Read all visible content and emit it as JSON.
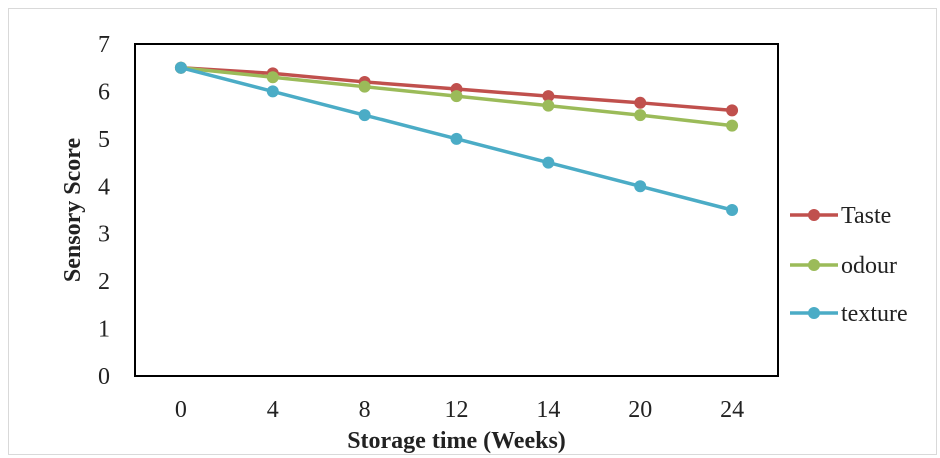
{
  "chart_data": {
    "type": "line",
    "title": "",
    "xlabel": "Storage time (Weeks)",
    "ylabel": "Sensory Score",
    "categories": [
      "0",
      "4",
      "8",
      "12",
      "14",
      "20",
      "24"
    ],
    "ylim": [
      0,
      7
    ],
    "yticks": [
      "0",
      "1",
      "2",
      "3",
      "4",
      "5",
      "6",
      "7"
    ],
    "grid": true,
    "legend_position": "right",
    "series": [
      {
        "name": "Taste",
        "color": "#c0504d",
        "values": [
          6.5,
          6.38,
          6.2,
          6.05,
          5.9,
          5.76,
          5.6
        ]
      },
      {
        "name": "odour",
        "color": "#9bbb59",
        "values": [
          6.5,
          6.3,
          6.1,
          5.9,
          5.7,
          5.5,
          5.28
        ]
      },
      {
        "name": "texture",
        "color": "#4bacc6",
        "values": [
          6.5,
          6.0,
          5.5,
          5.0,
          4.5,
          4.0,
          3.5
        ]
      }
    ]
  }
}
